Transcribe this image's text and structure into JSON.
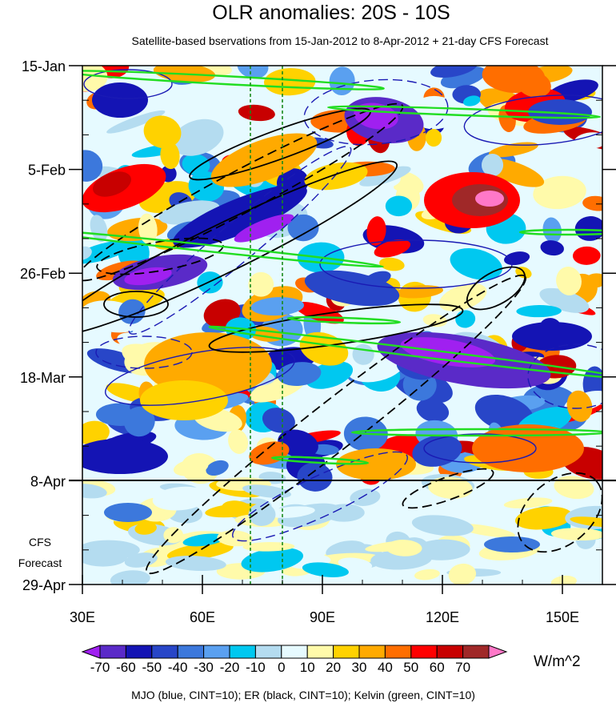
{
  "chart_data": {
    "type": "heatmap",
    "title": "OLR anomalies: 20S - 10S",
    "subtitle": "Satellite-based bservations from 15-Jan-2012 to 8-Apr-2012 + 21-day CFS Forecast",
    "x_axis": {
      "range": [
        30,
        160
      ],
      "ticks": [
        30,
        60,
        90,
        120,
        150
      ],
      "tick_labels": [
        "30E",
        "60E",
        "90E",
        "120E",
        "150E"
      ],
      "minor_ticks": [
        40,
        50,
        70,
        80,
        100,
        110,
        130,
        140
      ]
    },
    "y_axis": {
      "range_days": [
        0,
        105
      ],
      "ticks_days": [
        0,
        21,
        42,
        63,
        84,
        105
      ],
      "tick_labels": [
        "15-Jan",
        "5-Feb",
        "26-Feb",
        "18-Mar",
        "8-Apr",
        "29-Apr"
      ],
      "direction": "time increases downward"
    },
    "forecast_start_label": "8-Apr",
    "forecast_label": [
      "CFS",
      "Forecast"
    ],
    "reference_lines_lon": [
      72,
      80
    ],
    "colorbar": {
      "unit": "W/m^2",
      "levels": [
        -70,
        -60,
        -50,
        -40,
        -30,
        -20,
        -10,
        0,
        10,
        20,
        30,
        40,
        50,
        60,
        70
      ],
      "level_labels": [
        "-70",
        "-60",
        "-50",
        "-40",
        "-30",
        "-20",
        "-10",
        "0",
        "10",
        "20",
        "30",
        "40",
        "50",
        "60",
        "70"
      ],
      "colors": [
        "#a020f0",
        "#5a2ac8",
        "#1414b4",
        "#2846c8",
        "#3c78dc",
        "#5aa0f0",
        "#00c8f0",
        "#b4dcf0",
        "#e6faff",
        "#fffaaa",
        "#ffd200",
        "#ffaa00",
        "#ff6e00",
        "#ff0000",
        "#c80000",
        "#a02828",
        "#ff78c8"
      ]
    },
    "footer": "MJO (blue, CINT=10); ER (black, CINT=10); Kelvin (green, CINT=10)",
    "series": [
      {
        "name": "MJO",
        "color": "#1a1ab4",
        "cint": 10
      },
      {
        "name": "ER",
        "color": "#000000",
        "cint": 10
      },
      {
        "name": "Kelvin",
        "color": "#22dd22",
        "cint": 10
      }
    ]
  }
}
